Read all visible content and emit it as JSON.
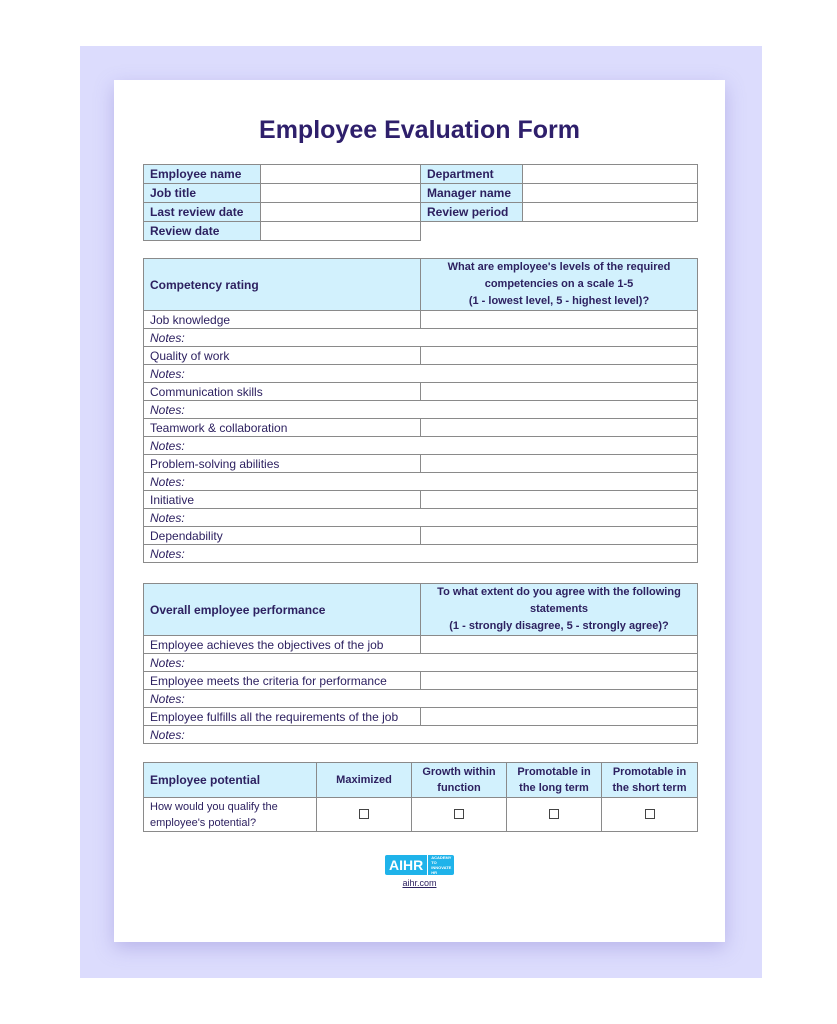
{
  "title": "Employee Evaluation Form",
  "info": {
    "left": [
      "Employee name",
      "Job title",
      "Last review date",
      "Review date"
    ],
    "right": [
      "Department",
      "Manager name",
      "Review period"
    ]
  },
  "competency": {
    "header": "Competency rating",
    "question": [
      "What are employee's levels of the required",
      "competencies on a scale 1-5",
      "(1 - lowest level, 5 - highest level)?"
    ],
    "notes_label": "Notes:",
    "items": [
      "Job knowledge",
      "Quality of work",
      "Communication skills",
      "Teamwork & collaboration",
      "Problem-solving abilities",
      "Initiative",
      "Dependability"
    ]
  },
  "performance": {
    "header": "Overall employee performance",
    "question": [
      "To what extent do you agree with the following",
      "statements",
      "(1 - strongly disagree, 5 - strongly agree)?"
    ],
    "notes_label": "Notes:",
    "items": [
      "Employee achieves the objectives of the job",
      "Employee meets the criteria for performance",
      "Employee fulfills all the requirements of the job"
    ]
  },
  "potential": {
    "header": "Employee potential",
    "columns": [
      "Maximized",
      "Growth within function",
      "Promotable in the long term",
      "Promotable in the short term"
    ],
    "question": "How would you qualify the employee's potential?",
    "checked": [
      false,
      false,
      false,
      false
    ]
  },
  "footer": {
    "logo": "AIHR",
    "logo_sub": "ACADEMY TO INNOVATE HR",
    "url": "aihr.com"
  },
  "colors": {
    "header_fill": "#d2f1fd",
    "text": "#2d2160",
    "frame": "#dcdcfd",
    "logo": "#1fb3ea"
  }
}
